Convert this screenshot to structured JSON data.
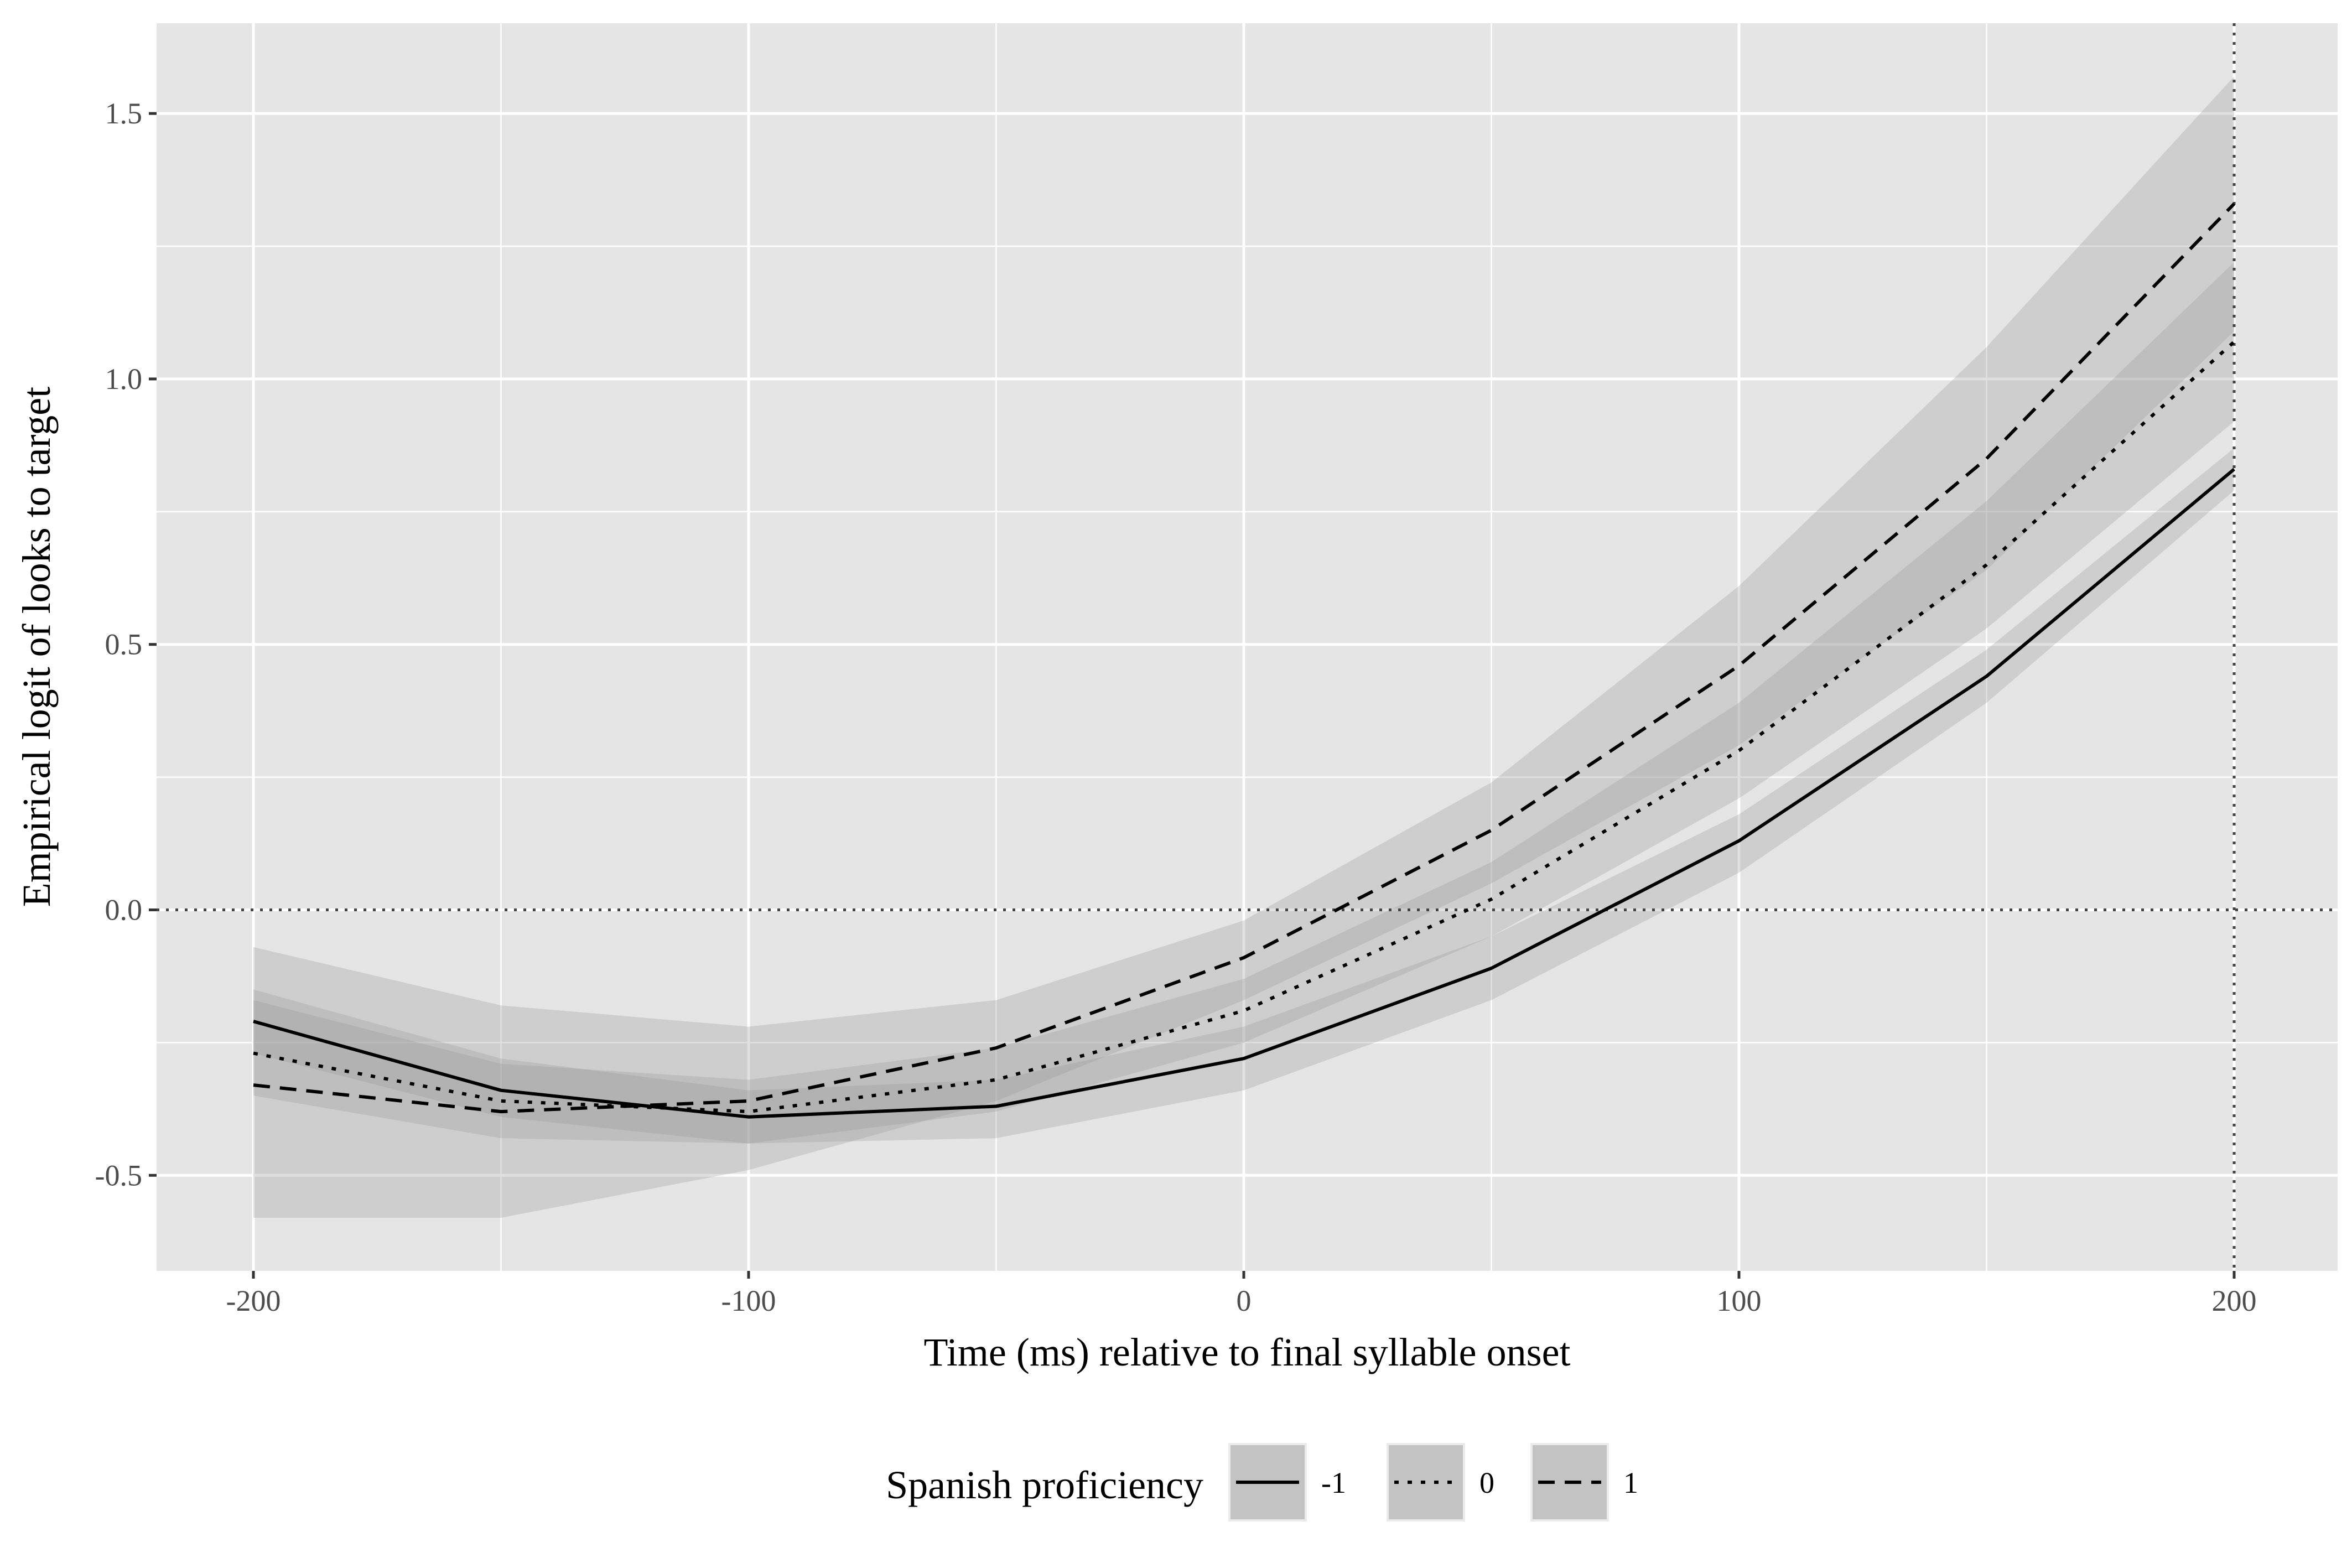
{
  "chart_data": {
    "type": "line",
    "title": "",
    "xlabel": "Time (ms) relative to final syllable onset",
    "ylabel": "Empirical logit of looks to target",
    "xlim": [
      -220,
      200
    ],
    "ylim": [
      -0.68,
      1.67
    ],
    "x_ticks": [
      -200,
      -100,
      0,
      100,
      200
    ],
    "x_tick_labels": [
      "-200",
      "-100",
      "0",
      "100",
      "200"
    ],
    "y_ticks": [
      -0.5,
      0.0,
      0.5,
      1.0,
      1.5
    ],
    "y_tick_labels": [
      "-0.5",
      "0.0",
      "0.5",
      "1.0",
      "1.5"
    ],
    "x": [
      -200,
      -150,
      -100,
      -50,
      0,
      50,
      100,
      150,
      200
    ],
    "series": [
      {
        "name": "-1",
        "linetype": "solid",
        "values": [
          -0.21,
          -0.34,
          -0.39,
          -0.37,
          -0.28,
          -0.11,
          0.13,
          0.44,
          0.83
        ],
        "lower": [
          -0.27,
          -0.39,
          -0.44,
          -0.43,
          -0.34,
          -0.17,
          0.07,
          0.39,
          0.79
        ],
        "upper": [
          -0.15,
          -0.28,
          -0.34,
          -0.32,
          -0.22,
          -0.05,
          0.18,
          0.49,
          0.87
        ]
      },
      {
        "name": "0",
        "linetype": "dotted",
        "values": [
          -0.27,
          -0.36,
          -0.38,
          -0.32,
          -0.19,
          0.02,
          0.3,
          0.65,
          1.07
        ],
        "lower": [
          -0.35,
          -0.43,
          -0.44,
          -0.38,
          -0.25,
          -0.05,
          0.21,
          0.53,
          0.92
        ],
        "upper": [
          -0.17,
          -0.29,
          -0.32,
          -0.26,
          -0.13,
          0.09,
          0.39,
          0.77,
          1.22
        ]
      },
      {
        "name": "1",
        "linetype": "dashed",
        "values": [
          -0.33,
          -0.38,
          -0.36,
          -0.26,
          -0.09,
          0.15,
          0.46,
          0.85,
          1.33
        ],
        "lower": [
          -0.58,
          -0.58,
          -0.49,
          -0.36,
          -0.17,
          0.05,
          0.31,
          0.64,
          1.09
        ],
        "upper": [
          -0.07,
          -0.18,
          -0.22,
          -0.17,
          -0.02,
          0.24,
          0.61,
          1.06,
          1.57
        ]
      }
    ],
    "reference_lines": {
      "hline": 0.0,
      "vline": 200,
      "style": "dotted"
    },
    "legend": {
      "title": "Spanish proficiency",
      "position": "bottom"
    },
    "grid": true,
    "colors": {
      "panel": "#e5e5e5",
      "grid": "#ffffff",
      "ribbon": "#999999",
      "line": "#000000"
    }
  }
}
